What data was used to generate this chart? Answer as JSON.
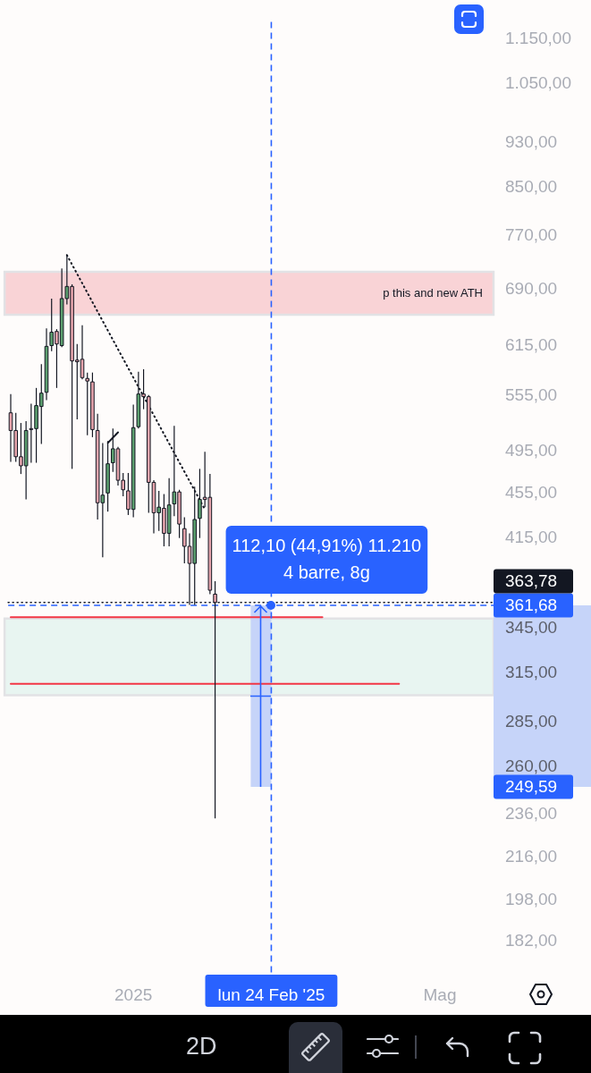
{
  "chart_data": {
    "type": "candlestick",
    "categories": [
      null,
      null,
      null,
      null,
      null,
      null,
      null,
      null,
      null,
      null,
      null,
      null,
      null,
      null,
      null,
      null,
      null,
      null,
      null,
      null,
      null,
      null,
      null,
      null,
      "2025",
      null,
      null,
      null,
      null,
      null,
      null,
      null,
      null,
      null,
      null,
      null,
      null,
      null,
      null,
      null,
      null,
      null,
      null,
      null,
      null,
      null,
      null,
      null,
      null,
      null,
      null,
      "lun 24 Feb '25",
      null,
      null,
      null,
      null,
      null,
      null,
      null,
      null,
      null,
      null,
      null,
      null,
      null,
      null,
      null,
      null,
      null,
      null,
      null,
      null,
      null,
      null,
      null,
      null,
      null,
      null,
      null,
      null,
      null,
      null,
      null,
      null,
      "Mag",
      null,
      null,
      null,
      null,
      null,
      null,
      null,
      null,
      null,
      null
    ],
    "ylim": [
      170,
      1192
    ],
    "log": "y",
    "yticks": [
      {
        "value": 1150,
        "label": "1.150,00"
      },
      {
        "value": 1050,
        "label": "1.050,00"
      },
      {
        "value": 930,
        "label": "930,00"
      },
      {
        "value": 850,
        "label": "850,00"
      },
      {
        "value": 770,
        "label": "770,00"
      },
      {
        "value": 690,
        "label": "690,00"
      },
      {
        "value": 615,
        "label": "615,00"
      },
      {
        "value": 555,
        "label": "555,00"
      },
      {
        "value": 495,
        "label": "495,00"
      },
      {
        "value": 455,
        "label": "455,00"
      },
      {
        "value": 415,
        "label": "415,00"
      },
      {
        "value": 345,
        "label": "345,00"
      },
      {
        "value": 315,
        "label": "315,00"
      },
      {
        "value": 285,
        "label": "285,00"
      },
      {
        "value": 260,
        "label": "260,00"
      },
      {
        "value": 236,
        "label": "236,00"
      },
      {
        "value": 216,
        "label": "216,00"
      },
      {
        "value": 198,
        "label": "198,00"
      },
      {
        "value": 182,
        "label": "182,00"
      }
    ],
    "series": [
      {
        "ohlc": [
          [
            536,
            557,
            485,
            517
          ],
          [
            517,
            536,
            485,
            490
          ],
          [
            490,
            525,
            473,
            481
          ],
          [
            481,
            527,
            449,
            517
          ],
          [
            519,
            546,
            484,
            518
          ],
          [
            519,
            564,
            484,
            544
          ],
          [
            543,
            592,
            503,
            558
          ],
          [
            559,
            637,
            550,
            614
          ],
          [
            615,
            677,
            608,
            632
          ],
          [
            633,
            636,
            564,
            617
          ],
          [
            615,
            720,
            613,
            677
          ],
          [
            677,
            740,
            669,
            694
          ],
          [
            694,
            697,
            478,
            596
          ],
          [
            597,
            617,
            529,
            595
          ],
          [
            598,
            641,
            574,
            576
          ],
          [
            575,
            582,
            512,
            572
          ],
          [
            571,
            582,
            510,
            518
          ],
          [
            517,
            535,
            431,
            446
          ],
          [
            446,
            504,
            399,
            453
          ],
          [
            455,
            506,
            438,
            483
          ],
          [
            484,
            519,
            475,
            498
          ],
          [
            498,
            500,
            462,
            467
          ],
          [
            467,
            474,
            452,
            458
          ],
          [
            457,
            474,
            435,
            440
          ],
          [
            440,
            545,
            433,
            520
          ],
          [
            521,
            583,
            519,
            557
          ],
          [
            557,
            586,
            540,
            554
          ],
          [
            554,
            556,
            437,
            465
          ],
          [
            465,
            467,
            419,
            437
          ],
          [
            437,
            457,
            421,
            442
          ],
          [
            441,
            454,
            408,
            419
          ],
          [
            419,
            469,
            408,
            444
          ],
          [
            445,
            522,
            434,
            456
          ],
          [
            456,
            458,
            415,
            427
          ],
          [
            423,
            433,
            394,
            408
          ],
          [
            408,
            419,
            362,
            394
          ],
          [
            394,
            461,
            362,
            431
          ],
          [
            432,
            478,
            415,
            449
          ],
          [
            451,
            495,
            442,
            449
          ],
          [
            451,
            473,
            370,
            373
          ],
          [
            370,
            380,
            234,
            363.78
          ],
          null,
          null,
          null,
          null,
          null,
          null,
          null,
          null,
          null,
          null,
          null,
          null,
          null,
          null,
          null,
          null,
          null,
          null,
          null,
          null,
          null,
          null,
          null,
          null,
          null,
          null,
          null,
          null,
          null,
          null,
          null,
          null,
          null,
          null,
          null,
          null,
          null,
          null,
          null,
          null,
          null,
          null,
          null,
          null,
          null,
          null,
          null,
          null,
          null,
          null,
          null,
          null,
          null,
          null
        ],
        "colors": [
          "#e6a4ac",
          "#e6a4ac",
          "#e6a4ac",
          "#5b9e6e",
          "#e6a4ac",
          "#5b9e6e",
          "#5b9e6e",
          "#5b9e6e",
          "#5b9e6e",
          "#e6a4ac",
          "#5b9e6e",
          "#5b9e6e",
          "#e6a4ac",
          "#e6a4ac",
          "#e6a4ac",
          "#e6a4ac",
          "#e6a4ac",
          "#e6a4ac",
          "#5b9e6e",
          "#5b9e6e",
          "#5b9e6e",
          "#e6a4ac",
          "#e6a4ac",
          "#e6a4ac",
          "#5b9e6e",
          "#5b9e6e",
          "#e6a4ac",
          "#e6a4ac",
          "#e6a4ac",
          "#5b9e6e",
          "#e6a4ac",
          "#5b9e6e",
          "#5b9e6e",
          "#e6a4ac",
          "#e6a4ac",
          "#e6a4ac",
          "#5b9e6e",
          "#5b9e6e",
          "#e6a4ac",
          "#e6a4ac",
          "#e6a4ac",
          null,
          null,
          null,
          null,
          null,
          null,
          null,
          null,
          null,
          null,
          null,
          null,
          null,
          null,
          null,
          null,
          null,
          null,
          null,
          null,
          null,
          null,
          null,
          null,
          null,
          null,
          null,
          null,
          null,
          null,
          null,
          null,
          null,
          null,
          null,
          null,
          null,
          null,
          null,
          null,
          null,
          null,
          null,
          null,
          null,
          null,
          null,
          null,
          null,
          null,
          null,
          null,
          null,
          null
        ]
      },
      {
        "type": "line",
        "color": "#f23645",
        "values": [
          353,
          353,
          353,
          353,
          353,
          353,
          353,
          353,
          353,
          353,
          353,
          353,
          353,
          353,
          353,
          353,
          353,
          353,
          353,
          353,
          353,
          353,
          353,
          353,
          353,
          353,
          353,
          353,
          353,
          353,
          353,
          353,
          353,
          353,
          353,
          353,
          353,
          353,
          353,
          353,
          353,
          353,
          353,
          353,
          353,
          353,
          353,
          353,
          353,
          353,
          353,
          353,
          353,
          353,
          353,
          353,
          353,
          353,
          353,
          353,
          353,
          353,
          null,
          null,
          null,
          null,
          null,
          null,
          null,
          null,
          null,
          null,
          null,
          null,
          null,
          null,
          null,
          null,
          null,
          null,
          null,
          null,
          null,
          null,
          null,
          null,
          null,
          null,
          null,
          null,
          null,
          null,
          null,
          null,
          null
        ]
      },
      {
        "type": "line",
        "color": "#f23645",
        "values": [
          308,
          308,
          308,
          308,
          308,
          308,
          308,
          308,
          308,
          308,
          308,
          308,
          308,
          308,
          308,
          308,
          308,
          308,
          308,
          308,
          308,
          308,
          308,
          308,
          308,
          308,
          308,
          308,
          308,
          308,
          308,
          308,
          308,
          308,
          308,
          308,
          308,
          308,
          308,
          308,
          308,
          308,
          308,
          308,
          308,
          308,
          308,
          308,
          308,
          308,
          308,
          308,
          308,
          308,
          308,
          308,
          308,
          308,
          308,
          308,
          308,
          308,
          308,
          308,
          308,
          308,
          308,
          308,
          308,
          308,
          308,
          308,
          308,
          308,
          308,
          308,
          308,
          null,
          null,
          null,
          null,
          null,
          null,
          null,
          null,
          null,
          null,
          null,
          null,
          null,
          null,
          null,
          null,
          null,
          null
        ]
      },
      {
        "type": "line",
        "color": "#131722",
        "line_style": "dotted",
        "values": [
          null,
          null,
          null,
          null,
          null,
          null,
          null,
          null,
          null,
          null,
          null,
          740,
          null,
          null,
          null,
          null,
          null,
          null,
          null,
          null,
          null,
          null,
          null,
          null,
          null,
          null,
          null,
          null,
          null,
          null,
          null,
          null,
          null,
          null,
          null,
          null,
          null,
          null,
          440,
          null,
          null,
          null,
          null,
          null,
          null,
          null,
          null,
          null,
          null,
          null,
          null,
          null,
          null,
          null,
          null,
          null,
          null,
          null,
          null,
          null,
          null,
          null,
          null,
          null,
          null,
          null,
          null,
          null,
          null,
          null,
          null,
          null,
          null,
          null,
          null,
          null,
          null,
          null,
          null,
          null,
          null,
          null,
          null,
          null,
          null,
          null,
          null,
          null,
          null,
          null,
          null,
          null,
          null,
          null,
          null
        ]
      },
      {
        "type": "line",
        "color": "#131722",
        "values": [
          null,
          null,
          null,
          null,
          null,
          null,
          null,
          null,
          null,
          null,
          null,
          null,
          null,
          null,
          null,
          null,
          null,
          null,
          null,
          504,
          null,
          515,
          null,
          null,
          null,
          null,
          null,
          null,
          null,
          null,
          null,
          null,
          null,
          null,
          null,
          null,
          null,
          null,
          null,
          null,
          null,
          null,
          null,
          null,
          null,
          null,
          null,
          null,
          null,
          null,
          null,
          null,
          null,
          null,
          null,
          null,
          null,
          null,
          null,
          null,
          null,
          null,
          null,
          null,
          null,
          null,
          null,
          null,
          null,
          null,
          null,
          null,
          null,
          null,
          null,
          null,
          null,
          null,
          null,
          null,
          null,
          null,
          null,
          null,
          null,
          null,
          null,
          null,
          null,
          null,
          null,
          null,
          null,
          null,
          null
        ]
      }
    ],
    "bands": [
      {
        "axis": "y",
        "from": 655,
        "to": 715,
        "label": "p this and new ATH",
        "color": "#f9d3d6"
      },
      {
        "axis": "y",
        "from": 301,
        "to": 352,
        "color": "#e8f5f1"
      },
      {
        "axis": "y",
        "from": 249.59,
        "to": 361.68,
        "color": "#c6d4f9"
      }
    ],
    "ref_lines": [
      {
        "axis": "y",
        "value": 363.78,
        "label": "363,78",
        "color": "#131722",
        "line_style": "dotted"
      },
      {
        "axis": "y",
        "value": 361.68,
        "label": "361,68",
        "color": "#2962ff",
        "line_style": "dashed"
      },
      {
        "axis": "x",
        "value": "lun 24 Feb '25",
        "color": "#2962ff",
        "line_style": "dashed"
      }
    ],
    "annotations": [
      "249,59",
      "112,10 (44,91%) 11.210",
      "4 barre, 8g",
      "2D"
    ]
  }
}
